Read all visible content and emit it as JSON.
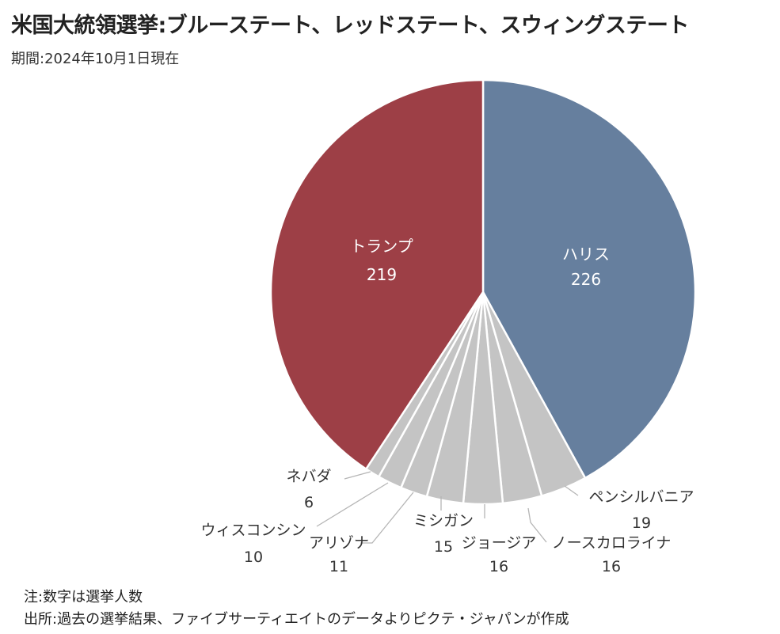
{
  "header": {
    "title": "米国大統領選挙:ブルーステート、レッドステート、スウィングステート",
    "subtitle": "期間:2024年10月1日現在"
  },
  "footer": {
    "note": "注:数字は選挙人数",
    "source": "出所:過去の選挙結果、ファイブサーティエイトのデータよりピクテ・ジャパンが作成"
  },
  "chart_data": {
    "type": "pie",
    "slices": [
      {
        "label": "ハリス",
        "value": 226,
        "color": "#667f9e"
      },
      {
        "label": "ペンシルバニア",
        "value": 19,
        "color": "#c4c4c4"
      },
      {
        "label": "ノースカロライナ",
        "value": 16,
        "color": "#c4c4c4"
      },
      {
        "label": "ジョージア",
        "value": 16,
        "color": "#c4c4c4"
      },
      {
        "label": "ミシガン",
        "value": 15,
        "color": "#c4c4c4"
      },
      {
        "label": "アリゾナ",
        "value": 11,
        "color": "#c4c4c4"
      },
      {
        "label": "ウィスコンシン",
        "value": 10,
        "color": "#c4c4c4"
      },
      {
        "label": "ネバダ",
        "value": 6,
        "color": "#c4c4c4"
      },
      {
        "label": "トランプ",
        "value": 219,
        "color": "#9d3f46"
      }
    ]
  }
}
